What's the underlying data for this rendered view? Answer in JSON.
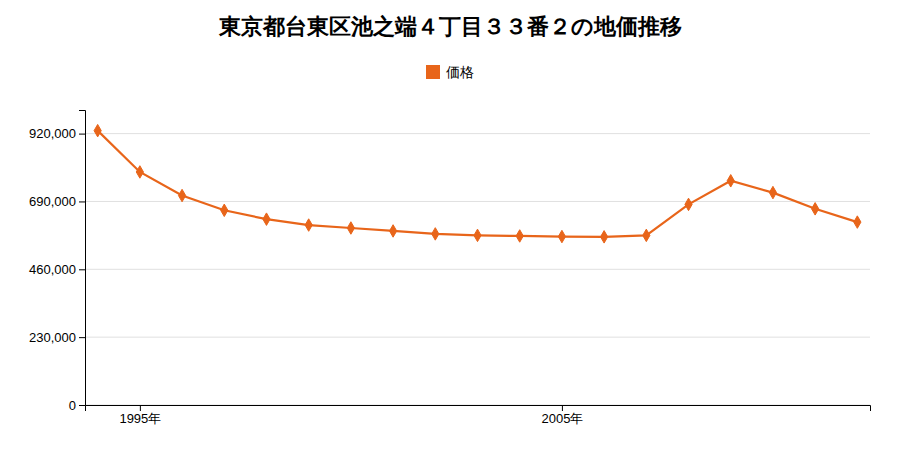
{
  "chart_data": {
    "type": "line",
    "title": "東京都台東区池之端４丁目３３番２の地価推移",
    "x": [
      1994,
      1995,
      1996,
      1997,
      1998,
      1999,
      2000,
      2001,
      2002,
      2003,
      2004,
      2005,
      2006,
      2007,
      2008,
      2009,
      2010,
      2011,
      2012
    ],
    "series": [
      {
        "name": "価格",
        "color": "#E8651A",
        "marker": "diamond",
        "values": [
          930000,
          790000,
          710000,
          660000,
          630000,
          610000,
          600000,
          590000,
          580000,
          575000,
          573000,
          571000,
          570000,
          575000,
          680000,
          760000,
          720000,
          665000,
          620000
        ]
      }
    ],
    "xlim": [
      1993.7,
      2012.3
    ],
    "xticks": [
      {
        "value": 1995,
        "label": "1995年"
      },
      {
        "value": 2005,
        "label": "2005年"
      }
    ],
    "ylim": [
      0,
      1000000
    ],
    "yticks": [
      0,
      {
        "value": 230000,
        "label": "230,000"
      },
      {
        "value": 460000,
        "label": "460,000"
      },
      {
        "value": 690000,
        "label": "690,000"
      },
      {
        "value": 920000,
        "label": "920,000"
      }
    ],
    "grid": true,
    "legend": "top"
  }
}
